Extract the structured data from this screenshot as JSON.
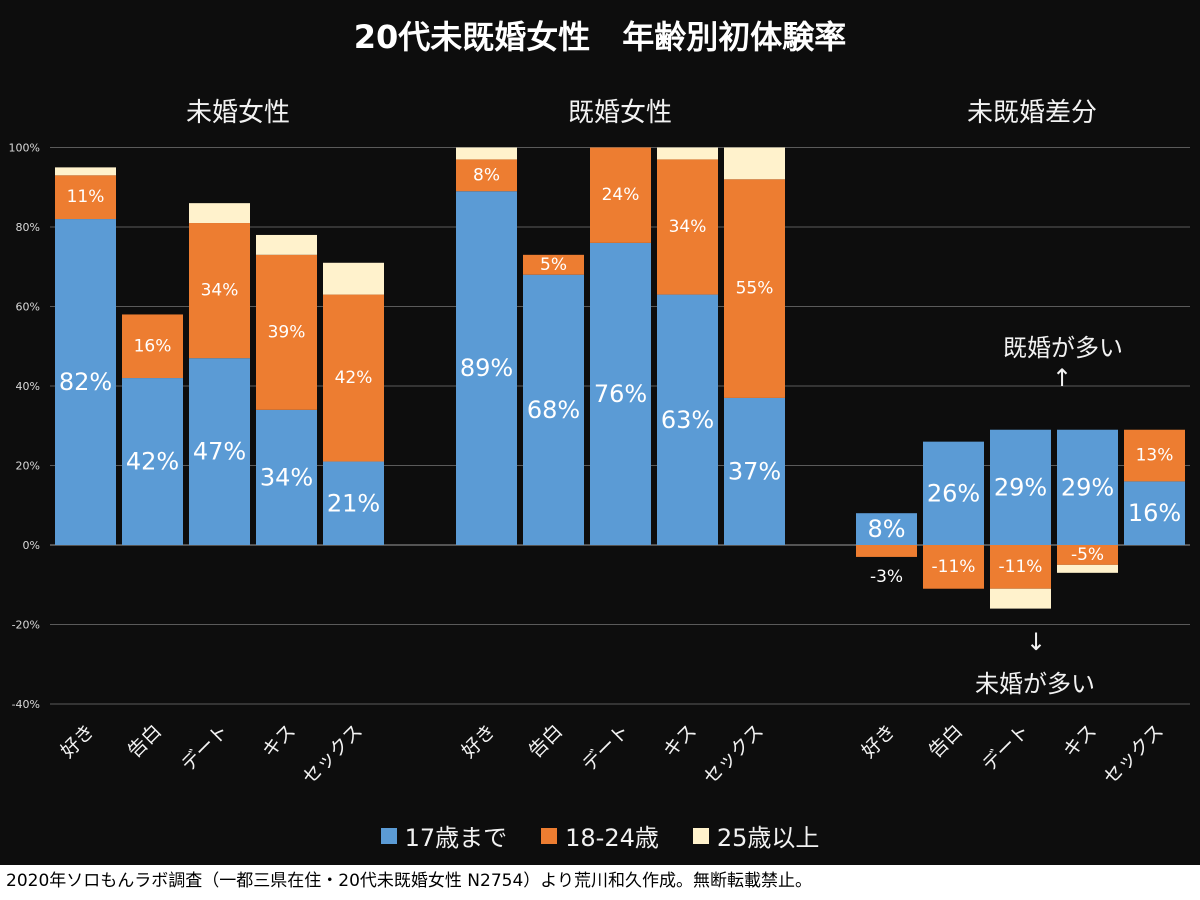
{
  "title": "20代未既婚女性　年齢別初体験率",
  "footer": "2020年ソロもんラボ調査（一都三県在住・20代未既婚女性 N2754）より荒川和久作成。無断転載禁止。",
  "annotations": {
    "more_married": "既婚が多い",
    "more_unmarried": "未婚が多い",
    "up_arrow": "↑",
    "down_arrow": "↓"
  },
  "legend": [
    {
      "label": "17歳まで",
      "color": "#5b9bd5"
    },
    {
      "label": "18-24歳",
      "color": "#ed7d31"
    },
    {
      "label": "25歳以上",
      "color": "#fff2cc"
    }
  ],
  "chart_data": {
    "type": "bar",
    "stacked": true,
    "title": "20代未既婚女性　年齢別初体験率",
    "y_axis": {
      "ylim": [
        -40,
        100
      ],
      "ticks": [
        "100%",
        "80%",
        "60%",
        "40%",
        "20%",
        "0%",
        "-20%",
        "-40%"
      ]
    },
    "grid": true,
    "legend_position": "bottom",
    "series_names": [
      "17歳まで",
      "18-24歳",
      "25歳以上"
    ],
    "groups": [
      {
        "name": "未婚女性",
        "categories": [
          "好き",
          "告白",
          "デート",
          "キス",
          "セックス"
        ],
        "series": [
          {
            "name": "17歳まで",
            "values": [
              82,
              42,
              47,
              34,
              21
            ],
            "labels": [
              "82%",
              "42%",
              "47%",
              "34%",
              "21%"
            ]
          },
          {
            "name": "18-24歳",
            "values": [
              11,
              16,
              34,
              39,
              42
            ],
            "labels": [
              "11%",
              "16%",
              "34%",
              "39%",
              "42%"
            ]
          },
          {
            "name": "25歳以上",
            "values": [
              2,
              0,
              5,
              5,
              8
            ],
            "labels": [
              "",
              "",
              "",
              "",
              ""
            ]
          }
        ]
      },
      {
        "name": "既婚女性",
        "categories": [
          "好き",
          "告白",
          "デート",
          "キス",
          "セックス"
        ],
        "series": [
          {
            "name": "17歳まで",
            "values": [
              89,
              68,
              76,
              63,
              37
            ],
            "labels": [
              "89%",
              "68%",
              "76%",
              "63%",
              "37%"
            ]
          },
          {
            "name": "18-24歳",
            "values": [
              8,
              5,
              24,
              34,
              55
            ],
            "labels": [
              "8%",
              "5%",
              "24%",
              "34%",
              "55%"
            ]
          },
          {
            "name": "25歳以上",
            "values": [
              3,
              0,
              0,
              3,
              8
            ],
            "labels": [
              "",
              "",
              "",
              "",
              ""
            ]
          }
        ]
      },
      {
        "name": "未既婚差分",
        "categories": [
          "好き",
          "告白",
          "デート",
          "キス",
          "セックス"
        ],
        "series": [
          {
            "name": "17歳まで",
            "values": [
              8,
              26,
              29,
              29,
              16
            ],
            "labels": [
              "8%",
              "26%",
              "29%",
              "29%",
              "16%"
            ]
          },
          {
            "name": "18-24歳",
            "values": [
              -3,
              -11,
              -11,
              -5,
              13
            ],
            "labels": [
              "-3%",
              "-11%",
              "-11%",
              "-5%",
              "13%"
            ]
          },
          {
            "name": "25歳以上",
            "values": [
              0,
              0,
              -5,
              -2,
              0
            ],
            "labels": [
              "",
              "",
              "",
              "",
              ""
            ]
          }
        ]
      }
    ]
  }
}
